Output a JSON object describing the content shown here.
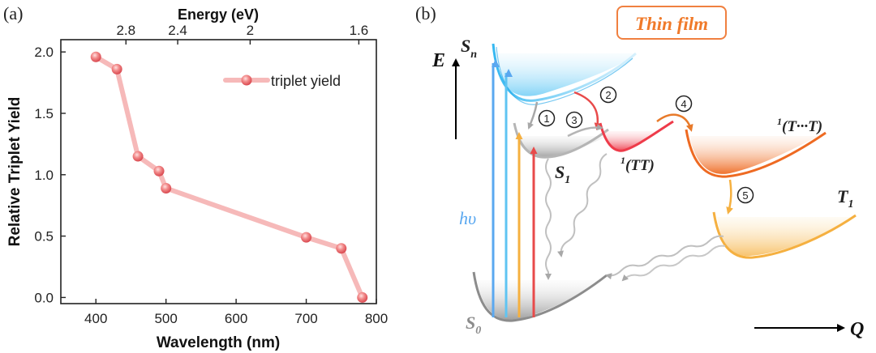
{
  "panel_a": {
    "label": "(a)",
    "top_axis_title": "Energy (eV)",
    "top_ticks": [
      "2.8",
      "2.4",
      "2",
      "1.6"
    ],
    "top_tick_energies": [
      2.8,
      2.4,
      2.0,
      1.6
    ]
  },
  "panel_b": {
    "label": "(b)",
    "thin_film": "Thin film",
    "axis_E": "E",
    "axis_Q": "Q",
    "state_Sn": "S",
    "state_Sn_sub": "n",
    "state_S1": "S",
    "state_S1_sub": "1",
    "state_S0": "S",
    "state_S0_sub": "0",
    "state_T1": "T",
    "state_T1_sub": "1",
    "state_TT_sup": "1",
    "state_TT": "(TT)",
    "state_TdotT_sup": "1",
    "state_TdotT": "(T···T)",
    "photon_label": "hυ",
    "steps": [
      "1",
      "2",
      "3",
      "4",
      "5"
    ],
    "colors": {
      "sn_blue": "#7fd3f5",
      "s1_gray": "#b0b0b0",
      "tt_red": "#f0505a",
      "tdt_orange": "#f07a2a",
      "t1_yellow": "#f8c060",
      "thin_film_border": "#f08040",
      "thin_film_text": "#f07a2a"
    }
  },
  "chart_data": {
    "type": "line",
    "title": "",
    "xlabel": "Wavelength (nm)",
    "ylabel": "Relative Triplet Yield",
    "xlim": [
      350,
      800
    ],
    "ylim": [
      -0.05,
      2.1
    ],
    "x_ticks": [
      400,
      500,
      600,
      700,
      800
    ],
    "y_ticks": [
      0.0,
      0.5,
      1.0,
      1.5,
      2.0
    ],
    "x_tick_labels": [
      "400",
      "500",
      "600",
      "700",
      "800"
    ],
    "y_tick_labels": [
      "0.0",
      "0.5",
      "1.0",
      "1.5",
      "2.0"
    ],
    "series": [
      {
        "name": "triplet yield",
        "color": "#f28b8b",
        "x": [
          400,
          430,
          460,
          490,
          500,
          700,
          750,
          780
        ],
        "y": [
          1.96,
          1.86,
          1.15,
          1.03,
          0.89,
          0.49,
          0.4,
          0.0
        ]
      }
    ],
    "legend": "top-right",
    "grid": false
  }
}
